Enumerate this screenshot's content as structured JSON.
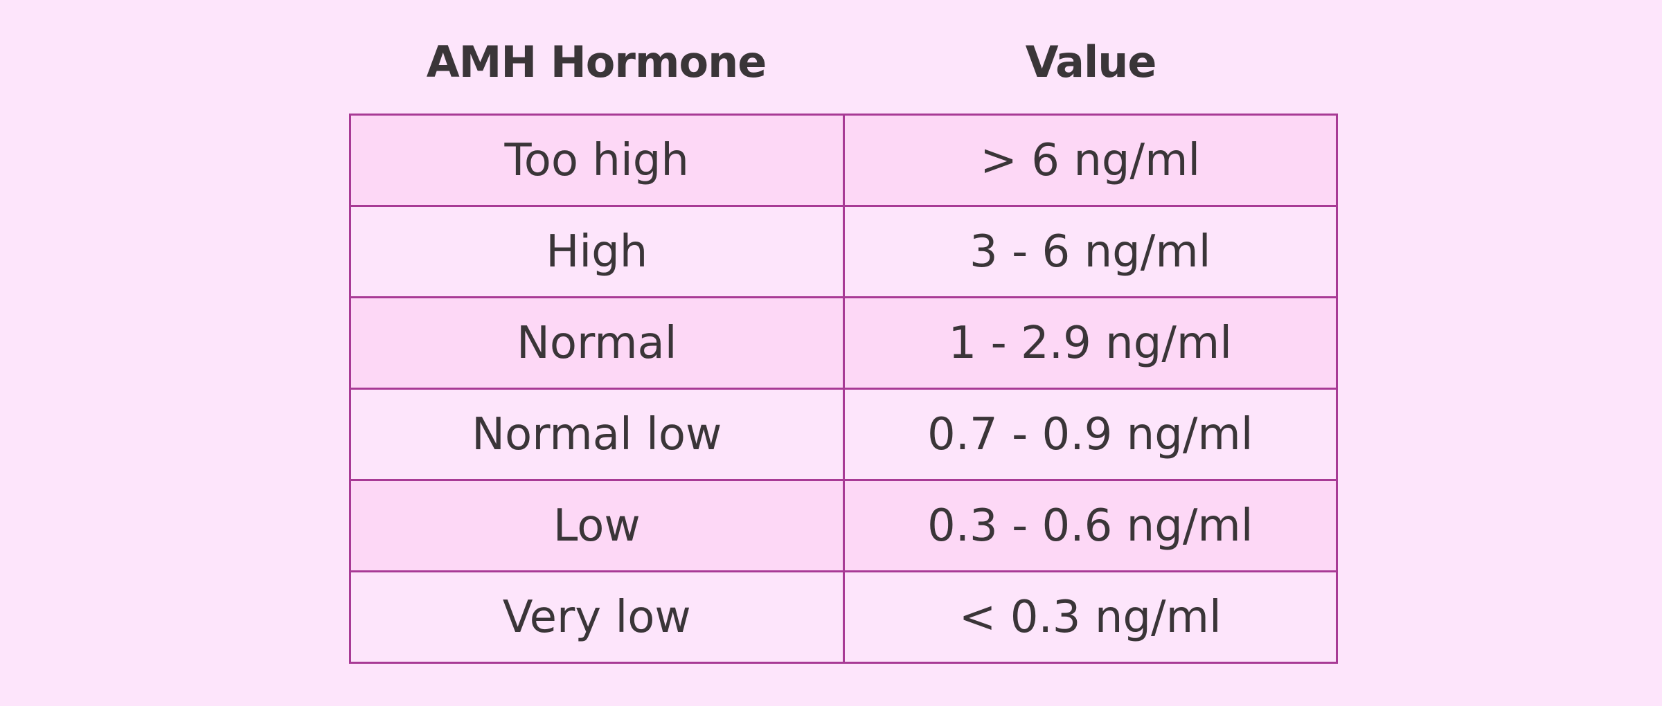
{
  "table": {
    "headers": [
      "AMH Hormone",
      "Value"
    ],
    "rows": [
      [
        "Too high",
        "> 6 ng/ml"
      ],
      [
        "High",
        "3 - 6 ng/ml"
      ],
      [
        "Normal",
        "1 - 2.9 ng/ml"
      ],
      [
        "Normal low",
        "0.7 - 0.9 ng/ml"
      ],
      [
        "Low",
        "0.3 - 0.6 ng/ml"
      ],
      [
        "Very low",
        "< 0.3 ng/ml"
      ]
    ]
  }
}
